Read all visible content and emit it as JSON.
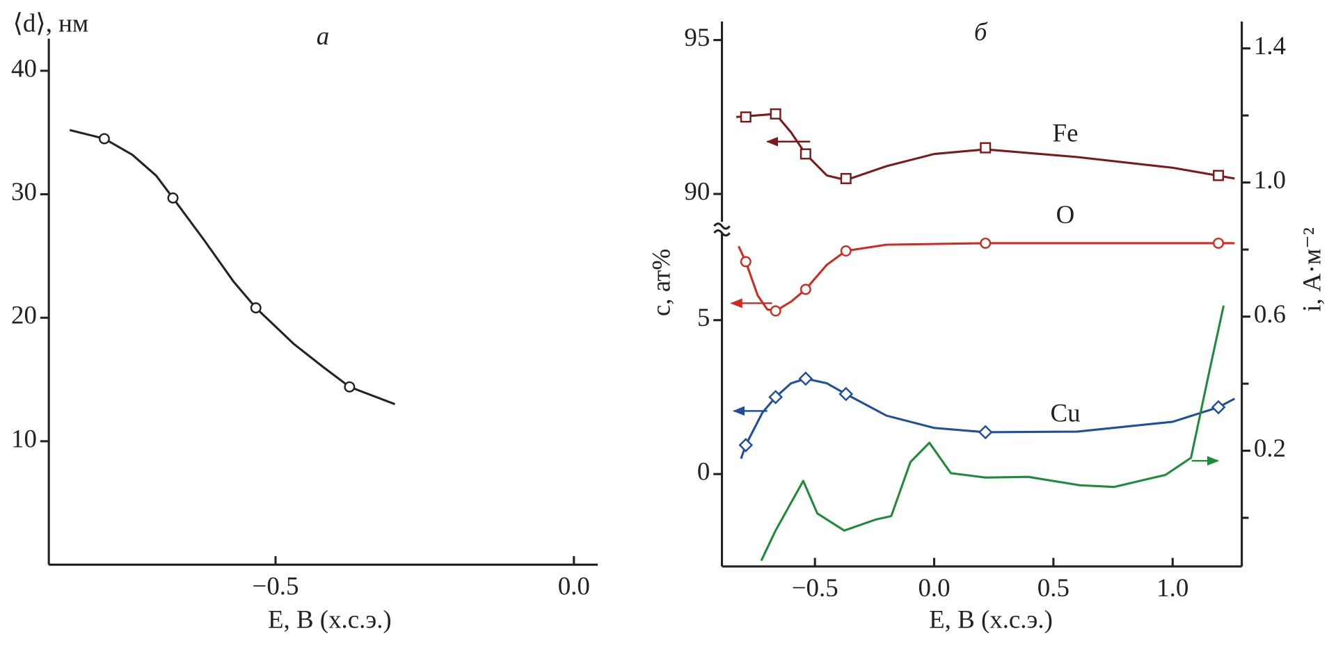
{
  "chart_data": [
    {
      "type": "line",
      "panel_label": "а",
      "ylabel": "⟨d⟩, нм",
      "xlabel": "E, В (х.с.э.)",
      "xlim": [
        -0.88,
        0.04
      ],
      "ylim": [
        0,
        42.6
      ],
      "xticks": [
        {
          "value": -0.5,
          "label": "−0.5"
        },
        {
          "value": 0,
          "label": "0.0"
        }
      ],
      "yticks": [
        10,
        20,
        30,
        40
      ],
      "series": [
        {
          "color": "#222222",
          "marker": "circle",
          "x": [
            -0.787,
            -0.672,
            -0.533,
            -0.376
          ],
          "values": [
            34.5,
            29.7,
            20.8,
            14.4
          ],
          "fit": {
            "x": [
              -0.845,
              -0.787,
              -0.74,
              -0.7,
              -0.672,
              -0.62,
              -0.57,
              -0.533,
              -0.47,
              -0.42,
              -0.376,
              -0.3
            ],
            "values": [
              35.2,
              34.5,
              33.2,
              31.5,
              29.7,
              26.3,
              22.9,
              20.8,
              17.9,
              16.0,
              14.4,
              13.0
            ]
          }
        }
      ]
    },
    {
      "type": "line",
      "panel_label": "б",
      "ylabel": "c, ат%",
      "y2label": "i, А·м⁻²",
      "xlabel": "E, В (х.с.э.)",
      "xlim": [
        -0.89,
        1.29
      ],
      "ylim": [
        -3,
        95.6
      ],
      "ybreak": [
        8,
        88.9
      ],
      "y2lim": [
        -0.145,
        1.48
      ],
      "xticks": [
        {
          "value": -0.5,
          "label": "−0.5"
        },
        {
          "value": 0,
          "label": "0.0"
        },
        {
          "value": 0.5,
          "label": "0.5"
        },
        {
          "value": 1,
          "label": "1.0"
        }
      ],
      "yticks": [
        0,
        5,
        90,
        95
      ],
      "y2ticks": [
        0.2,
        0.6,
        {
          "value": 1,
          "label": "1.0"
        },
        1.4
      ],
      "y2minorticks": [
        0,
        0.4,
        0.8,
        1.2
      ],
      "series": [
        {
          "name": "Fe",
          "color": "#7b1a1a",
          "marker": "square",
          "x": [
            -0.79,
            -0.665,
            -0.539,
            -0.37,
            0.215,
            1.192
          ],
          "values": [
            92.5,
            92.6,
            91.3,
            90.5,
            91.5,
            90.6
          ],
          "fit": {
            "x": [
              -0.83,
              -0.665,
              -0.6,
              -0.539,
              -0.45,
              -0.37,
              -0.2,
              0.0,
              0.215,
              0.6,
              1.0,
              1.26
            ],
            "values": [
              92.5,
              92.6,
              92.0,
              91.3,
              90.6,
              90.45,
              90.9,
              91.3,
              91.45,
              91.2,
              90.85,
              90.5
            ]
          }
        },
        {
          "name": "O",
          "color": "#d02a22",
          "marker": "circle",
          "x": [
            -0.79,
            -0.665,
            -0.539,
            -0.37,
            0.215,
            1.192
          ],
          "values": [
            6.9,
            5.3,
            6.0,
            7.25,
            7.5,
            7.5
          ],
          "fit": {
            "x": [
              -0.82,
              -0.79,
              -0.74,
              -0.7,
              -0.665,
              -0.6,
              -0.539,
              -0.45,
              -0.37,
              -0.2,
              0.215,
              0.8,
              1.26
            ],
            "values": [
              7.4,
              6.9,
              5.8,
              5.35,
              5.3,
              5.6,
              6.0,
              6.8,
              7.25,
              7.45,
              7.5,
              7.5,
              7.5
            ]
          }
        },
        {
          "name": "Cu",
          "color": "#1f4e9c",
          "marker": "diamond",
          "x": [
            -0.79,
            -0.665,
            -0.539,
            -0.37,
            0.215,
            1.192
          ],
          "values": [
            0.94,
            2.5,
            3.1,
            2.6,
            1.36,
            2.17
          ],
          "fit": {
            "x": [
              -0.81,
              -0.79,
              -0.72,
              -0.665,
              -0.6,
              -0.539,
              -0.45,
              -0.37,
              -0.2,
              0.0,
              0.215,
              0.6,
              1.0,
              1.192,
              1.26
            ],
            "values": [
              0.5,
              0.94,
              2.0,
              2.5,
              2.95,
              3.1,
              2.95,
              2.6,
              1.9,
              1.5,
              1.36,
              1.38,
              1.7,
              2.17,
              2.45
            ]
          }
        },
        {
          "color": "#1e8a3a",
          "axis": "y2",
          "x": [
            -0.725,
            -0.665,
            -0.549,
            -0.49,
            -0.377,
            -0.244,
            -0.18,
            -0.1,
            -0.02,
            0.07,
            0.215,
            0.395,
            0.61,
            0.754,
            0.97,
            1.077,
            1.149,
            1.214
          ],
          "values": [
            -0.128,
            -0.038,
            0.11,
            0.013,
            -0.038,
            -0.005,
            0.005,
            0.166,
            0.224,
            0.133,
            0.12,
            0.122,
            0.097,
            0.092,
            0.128,
            0.179,
            0.42,
            0.633
          ]
        }
      ]
    }
  ]
}
